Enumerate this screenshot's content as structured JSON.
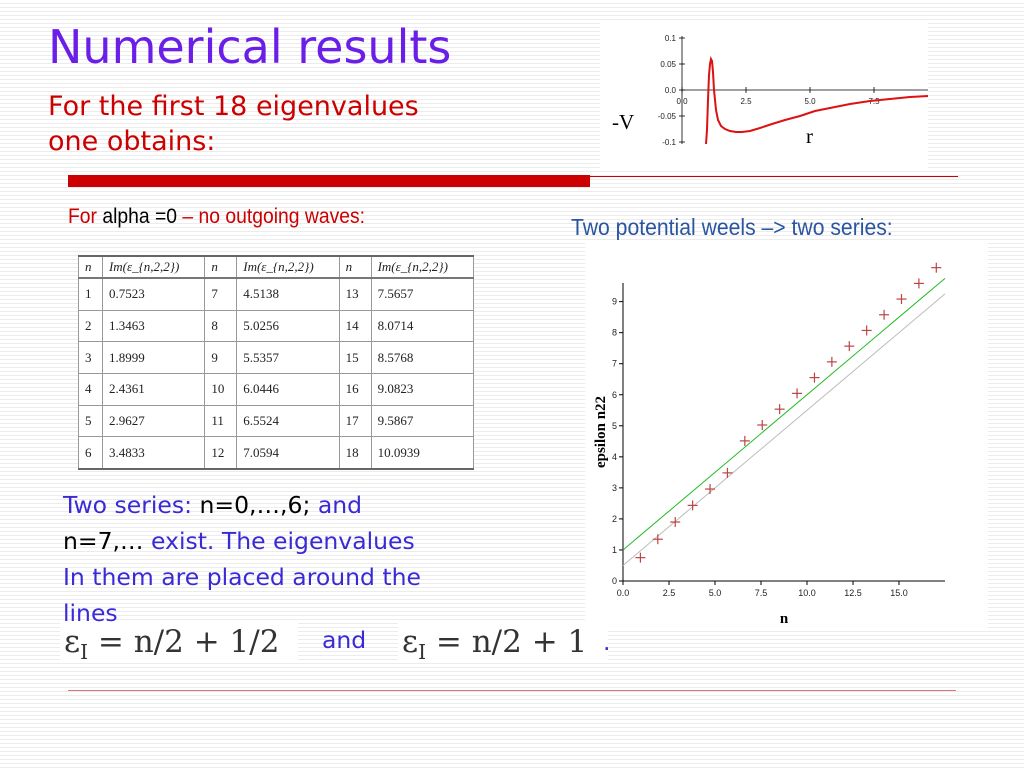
{
  "header": {
    "title": "Numerical results",
    "subtitle_line1": "For the first 18 eigenvalues",
    "subtitle_line2": "one obtains:"
  },
  "colors": {
    "title": "#6a1ee8",
    "accent_red": "#cc0000",
    "body_blue": "#3a2ad6",
    "heading_blue": "#2a55a0",
    "plot_green": "#22bb22",
    "plot_grey": "#bbbbbb",
    "marker_red": "#bb4444"
  },
  "potential_plot": {
    "ylabel": "-V",
    "xlabel": "r",
    "x_ticks": [
      "0.0",
      "2.5",
      "5.0",
      "7.5"
    ],
    "y_ticks": [
      "0.1",
      "0.05",
      "0.0",
      "-0.05",
      "-0.1"
    ]
  },
  "left_heading": {
    "part1": "For",
    "part2": "alpha =0",
    "part3": "– no outgoing waves:"
  },
  "right_heading": "Two potential weels –> two series:",
  "table": {
    "headers": [
      "n",
      "Im(ε_{n,2,2})",
      "n",
      "Im(ε_{n,2,2})",
      "n",
      "Im(ε_{n,2,2})"
    ],
    "rows": [
      [
        "1",
        "0.7523",
        "7",
        "4.5138",
        "13",
        "7.5657"
      ],
      [
        "2",
        "1.3463",
        "8",
        "5.0256",
        "14",
        "8.0714"
      ],
      [
        "3",
        "1.8999",
        "9",
        "5.5357",
        "15",
        "8.5768"
      ],
      [
        "4",
        "2.4361",
        "10",
        "6.0446",
        "16",
        "9.0823"
      ],
      [
        "5",
        "2.9627",
        "11",
        "6.5524",
        "17",
        "9.5867"
      ],
      [
        "6",
        "3.4833",
        "12",
        "7.0594",
        "18",
        "10.0939"
      ]
    ]
  },
  "chart_data": {
    "type": "scatter",
    "xlabel": "n",
    "ylabel": "epsilon n22",
    "xlim": [
      0,
      17.5
    ],
    "ylim": [
      0,
      9.6
    ],
    "x_ticks": [
      "0.0",
      "2.5",
      "5.0",
      "7.5",
      "10.0",
      "12.5",
      "15.0"
    ],
    "y_ticks": [
      "0",
      "1",
      "2",
      "3",
      "4",
      "5",
      "6",
      "7",
      "8",
      "9"
    ],
    "x": [
      1,
      2,
      3,
      4,
      5,
      6,
      7,
      8,
      9,
      10,
      11,
      12,
      13,
      14,
      15,
      16,
      17,
      18
    ],
    "y": [
      0.7523,
      1.3463,
      1.8999,
      2.4361,
      2.9627,
      3.4833,
      4.5138,
      5.0256,
      5.5357,
      6.0446,
      6.5524,
      7.0594,
      7.5657,
      8.0714,
      8.5768,
      9.0823,
      9.5867,
      10.0939
    ],
    "lines": [
      {
        "label": "n/2 + 1",
        "slope": 0.5,
        "intercept": 1.0
      },
      {
        "label": "n/2 + 1/2",
        "slope": 0.5,
        "intercept": 0.5
      }
    ],
    "grid": false
  },
  "body": {
    "line1_a": "Two series: ",
    "line1_b": "n=0,…,6;",
    "line1_c": " and",
    "line2_a": "n=7,…",
    "line2_b": " exist. The eigenvalues",
    "line3": "In them are placed around the",
    "line4": "lines"
  },
  "formulas": {
    "f1_lhs": "ε",
    "f1_sub": "I",
    "f1_rhs": " = n/2 + 1/2",
    "and_text": "and",
    "f2_lhs": "ε",
    "f2_sub": "I",
    "f2_rhs": " = n/2 + 1",
    "period": "."
  }
}
